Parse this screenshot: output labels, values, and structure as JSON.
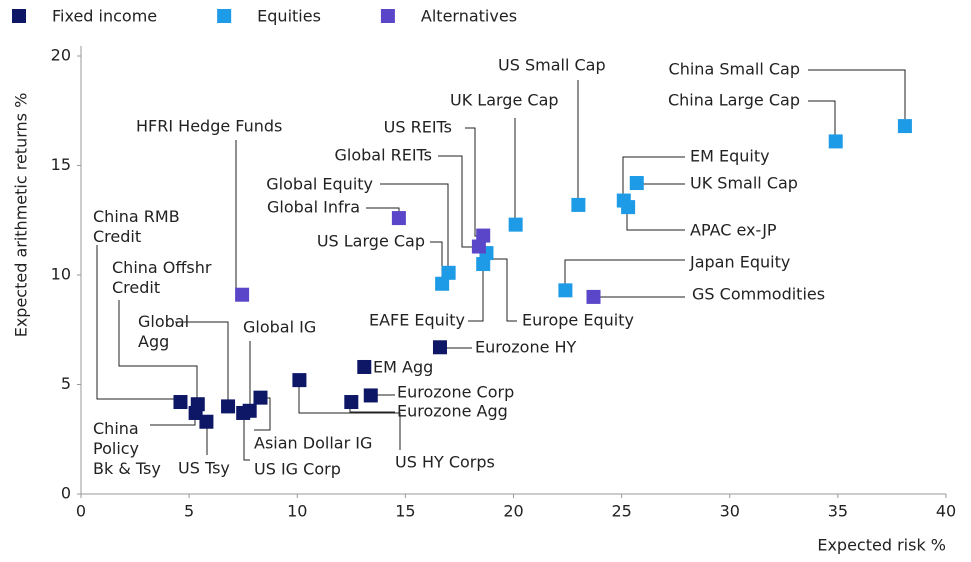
{
  "chart_data": {
    "type": "scatter",
    "xlabel": "Expected risk %",
    "ylabel": "Expected arithmetic returns %",
    "xlim": [
      0,
      40
    ],
    "ylim": [
      0,
      20
    ],
    "xticks": [
      0,
      5,
      10,
      15,
      20,
      25,
      30,
      35,
      40
    ],
    "yticks": [
      0,
      5,
      10,
      15,
      20
    ],
    "grid": false,
    "legend": "top-left",
    "series": [
      {
        "name": "Fixed income",
        "color": "#0d1766",
        "labels": [
          "China RMB Credit",
          "China Offshr Credit",
          "China Policy Bk & Tsy",
          "US Tsy",
          "Global Agg",
          "Global IG",
          "US IG Corp",
          "Asian Dollar IG",
          "US HY Corps",
          "EM Agg",
          "Eurozone Corp",
          "Eurozone Agg",
          "Eurozone HY"
        ],
        "x": [
          4.6,
          5.4,
          5.3,
          5.8,
          6.8,
          7.8,
          7.5,
          8.3,
          10.1,
          13.1,
          13.4,
          12.5,
          16.6
        ],
        "y": [
          4.2,
          4.1,
          3.7,
          3.3,
          4.0,
          3.8,
          3.7,
          4.4,
          5.2,
          5.8,
          4.5,
          4.2,
          6.7
        ]
      },
      {
        "name": "Equities",
        "color": "#1e9be6",
        "labels": [
          "China Small Cap",
          "China Large Cap",
          "EM Equity",
          "UK Small Cap",
          "APAC ex-JP",
          "US Small Cap",
          "UK Large Cap",
          "Japan Equity",
          "US Large Cap",
          "Global Equity",
          "EAFE Equity",
          "Europe Equity"
        ],
        "x": [
          38.1,
          34.9,
          25.1,
          25.7,
          25.3,
          23.0,
          20.1,
          22.4,
          16.7,
          17.0,
          18.6,
          18.75
        ],
        "y": [
          16.8,
          16.1,
          13.4,
          14.2,
          13.1,
          13.2,
          12.3,
          9.3,
          9.6,
          10.1,
          10.5,
          11.0
        ]
      },
      {
        "name": "Alternatives",
        "color": "#5a46c8",
        "labels": [
          "HFRI Hedge Funds",
          "Global Infra",
          "Global REITs",
          "US REITs",
          "GS Commodities"
        ],
        "x": [
          7.45,
          14.7,
          18.4,
          18.6,
          23.7
        ],
        "y": [
          9.1,
          12.6,
          11.3,
          11.8,
          9.0
        ]
      }
    ]
  }
}
